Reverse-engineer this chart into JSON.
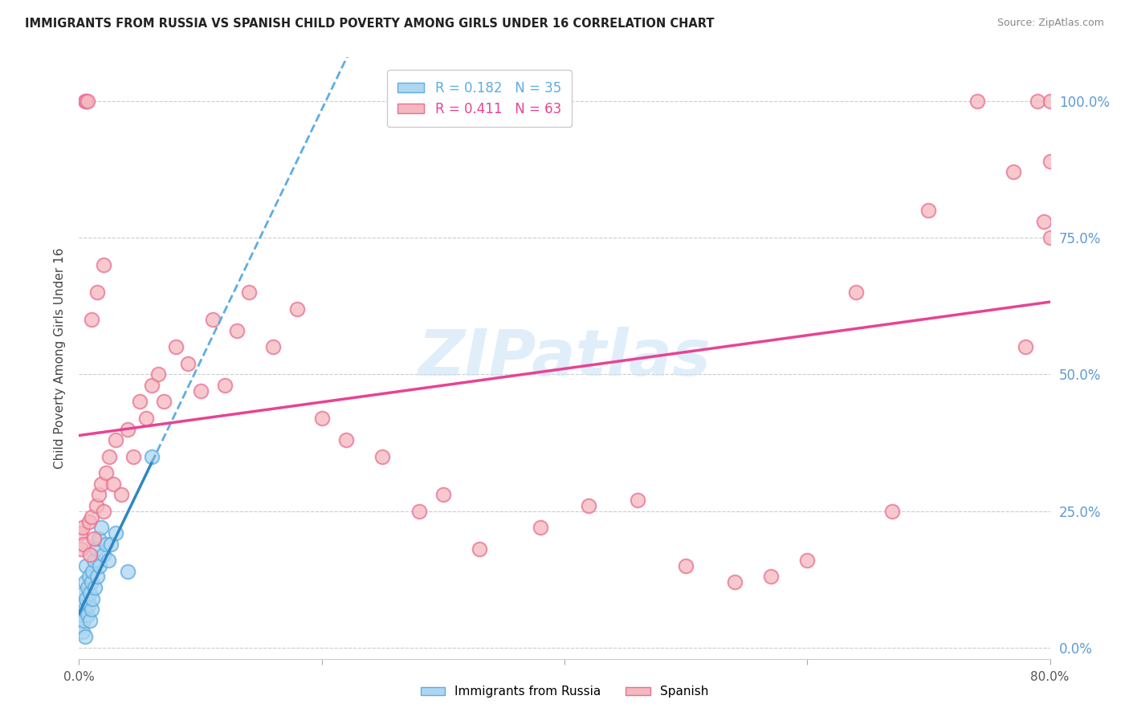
{
  "title": "IMMIGRANTS FROM RUSSIA VS SPANISH CHILD POVERTY AMONG GIRLS UNDER 16 CORRELATION CHART",
  "source": "Source: ZipAtlas.com",
  "ylabel": "Child Poverty Among Girls Under 16",
  "ytick_labels": [
    "0.0%",
    "25.0%",
    "50.0%",
    "75.0%",
    "100.0%"
  ],
  "ytick_values": [
    0.0,
    0.25,
    0.5,
    0.75,
    1.0
  ],
  "xlim": [
    0.0,
    0.8
  ],
  "ylim": [
    -0.02,
    1.08
  ],
  "watermark_text": "ZIPatlas",
  "russia_R": 0.182,
  "russia_N": 35,
  "spanish_R": 0.411,
  "spanish_N": 63,
  "russia_scatter_x": [
    0.001,
    0.002,
    0.003,
    0.003,
    0.004,
    0.004,
    0.005,
    0.005,
    0.005,
    0.006,
    0.006,
    0.007,
    0.007,
    0.008,
    0.008,
    0.009,
    0.009,
    0.01,
    0.01,
    0.011,
    0.011,
    0.012,
    0.013,
    0.014,
    0.015,
    0.016,
    0.017,
    0.018,
    0.02,
    0.022,
    0.024,
    0.026,
    0.03,
    0.04,
    0.06
  ],
  "russia_scatter_y": [
    0.04,
    0.06,
    0.03,
    0.08,
    0.05,
    0.1,
    0.07,
    0.12,
    0.02,
    0.09,
    0.15,
    0.06,
    0.11,
    0.08,
    0.13,
    0.1,
    0.05,
    0.12,
    0.07,
    0.14,
    0.09,
    0.16,
    0.11,
    0.18,
    0.13,
    0.2,
    0.15,
    0.22,
    0.17,
    0.19,
    0.16,
    0.19,
    0.21,
    0.14,
    0.35
  ],
  "spanish_scatter_x": [
    0.001,
    0.002,
    0.003,
    0.004,
    0.005,
    0.006,
    0.007,
    0.008,
    0.009,
    0.01,
    0.012,
    0.014,
    0.016,
    0.018,
    0.02,
    0.022,
    0.025,
    0.028,
    0.03,
    0.035,
    0.04,
    0.045,
    0.05,
    0.055,
    0.06,
    0.065,
    0.07,
    0.08,
    0.09,
    0.1,
    0.11,
    0.12,
    0.13,
    0.14,
    0.16,
    0.18,
    0.2,
    0.22,
    0.25,
    0.28,
    0.3,
    0.33,
    0.38,
    0.42,
    0.46,
    0.5,
    0.54,
    0.57,
    0.6,
    0.64,
    0.67,
    0.7,
    0.74,
    0.77,
    0.78,
    0.79,
    0.795,
    0.8,
    0.8,
    0.8,
    0.01,
    0.015,
    0.02
  ],
  "spanish_scatter_y": [
    0.21,
    0.18,
    0.22,
    0.19,
    1.0,
    1.0,
    1.0,
    0.23,
    0.17,
    0.24,
    0.2,
    0.26,
    0.28,
    0.3,
    0.25,
    0.32,
    0.35,
    0.3,
    0.38,
    0.28,
    0.4,
    0.35,
    0.45,
    0.42,
    0.48,
    0.5,
    0.45,
    0.55,
    0.52,
    0.47,
    0.6,
    0.48,
    0.58,
    0.65,
    0.55,
    0.62,
    0.42,
    0.38,
    0.35,
    0.25,
    0.28,
    0.18,
    0.22,
    0.26,
    0.27,
    0.15,
    0.12,
    0.13,
    0.16,
    0.65,
    0.25,
    0.8,
    1.0,
    0.87,
    0.55,
    1.0,
    0.78,
    1.0,
    0.89,
    0.75,
    0.6,
    0.65,
    0.7
  ],
  "bg_color": "#ffffff",
  "scatter_russia_color": "#aed6f1",
  "scatter_russia_edge": "#5dade2",
  "scatter_spanish_color": "#f5b7c0",
  "scatter_spanish_edge": "#e87090",
  "trendline_russia_solid_color": "#2e86c1",
  "trendline_russia_dash_color": "#5dade2",
  "trendline_spanish_color": "#e84393",
  "grid_color": "#cccccc",
  "yticklabel_color": "#5b9bd5",
  "xticklabel_color": "#555555",
  "legend_russia_text_color": "#5dade2",
  "legend_spanish_text_color": "#e84393"
}
